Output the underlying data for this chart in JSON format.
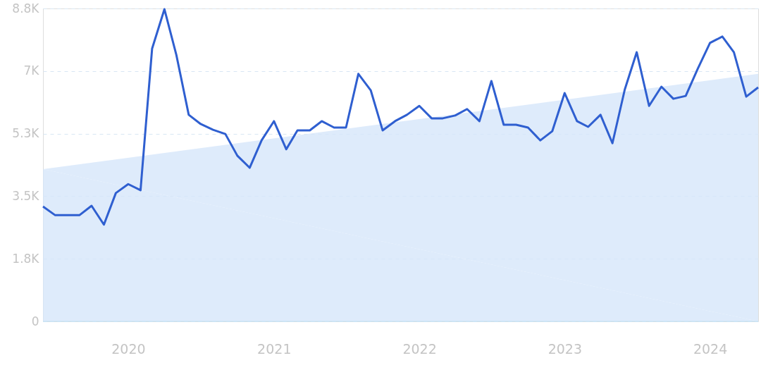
{
  "chart_data": {
    "type": "line",
    "x": [
      "2019-06",
      "2019-07",
      "2019-08",
      "2019-09",
      "2019-10",
      "2019-11",
      "2019-12",
      "2020-01",
      "2020-02",
      "2020-03",
      "2020-04",
      "2020-05",
      "2020-06",
      "2020-07",
      "2020-08",
      "2020-09",
      "2020-10",
      "2020-11",
      "2020-12",
      "2021-01",
      "2021-02",
      "2021-03",
      "2021-04",
      "2021-05",
      "2021-06",
      "2021-07",
      "2021-08",
      "2021-09",
      "2021-10",
      "2021-11",
      "2021-12",
      "2022-01",
      "2022-02",
      "2022-03",
      "2022-04",
      "2022-05",
      "2022-06",
      "2022-07",
      "2022-08",
      "2022-09",
      "2022-10",
      "2022-11",
      "2022-12",
      "2023-01",
      "2023-02",
      "2023-03",
      "2023-04",
      "2023-05",
      "2023-06",
      "2023-07",
      "2023-08",
      "2023-09",
      "2023-10",
      "2023-11",
      "2023-12",
      "2024-01",
      "2024-02",
      "2024-03",
      "2024-04",
      "2024-05"
    ],
    "series": [
      {
        "type": "area",
        "color": "#d6e6fa",
        "x": [
          "2019-06",
          "2024-05"
        ],
        "values": [
          4280,
          6960
        ]
      },
      {
        "color": "#2f5fd0",
        "values": [
          3230,
          2990,
          2990,
          2990,
          3250,
          2720,
          3610,
          3860,
          3690,
          7670,
          8780,
          7490,
          5810,
          5550,
          5390,
          5270,
          4660,
          4320,
          5090,
          5630,
          4840,
          5370,
          5370,
          5630,
          5450,
          5450,
          6960,
          6500,
          5370,
          5630,
          5810,
          6060,
          5710,
          5710,
          5790,
          5970,
          5630,
          6760,
          5530,
          5530,
          5450,
          5090,
          5350,
          6420,
          5630,
          5470,
          5810,
          5010,
          6520,
          7570,
          6060,
          6600,
          6260,
          6340,
          7100,
          7830,
          8010,
          7570,
          6320,
          6580
        ]
      }
    ],
    "xlim": [
      "2019-06",
      "2024-05"
    ],
    "xticks": [
      {
        "value": "2020",
        "label": "2020"
      },
      {
        "value": "2021",
        "label": "2021"
      },
      {
        "value": "2022",
        "label": "2022"
      },
      {
        "value": "2023",
        "label": "2023"
      },
      {
        "value": "2024",
        "label": "2024"
      }
    ],
    "ylim": [
      0,
      8800
    ],
    "yticks": [
      {
        "value": 0,
        "label": "0"
      },
      {
        "value": 1760,
        "label": "1.8K"
      },
      {
        "value": 3520,
        "label": "3.5K"
      },
      {
        "value": 5280,
        "label": "5.3K"
      },
      {
        "value": 7040,
        "label": "7K"
      },
      {
        "value": 8800,
        "label": "8.8K"
      }
    ],
    "grid": "y",
    "line_style": "solid",
    "marker": "none"
  }
}
